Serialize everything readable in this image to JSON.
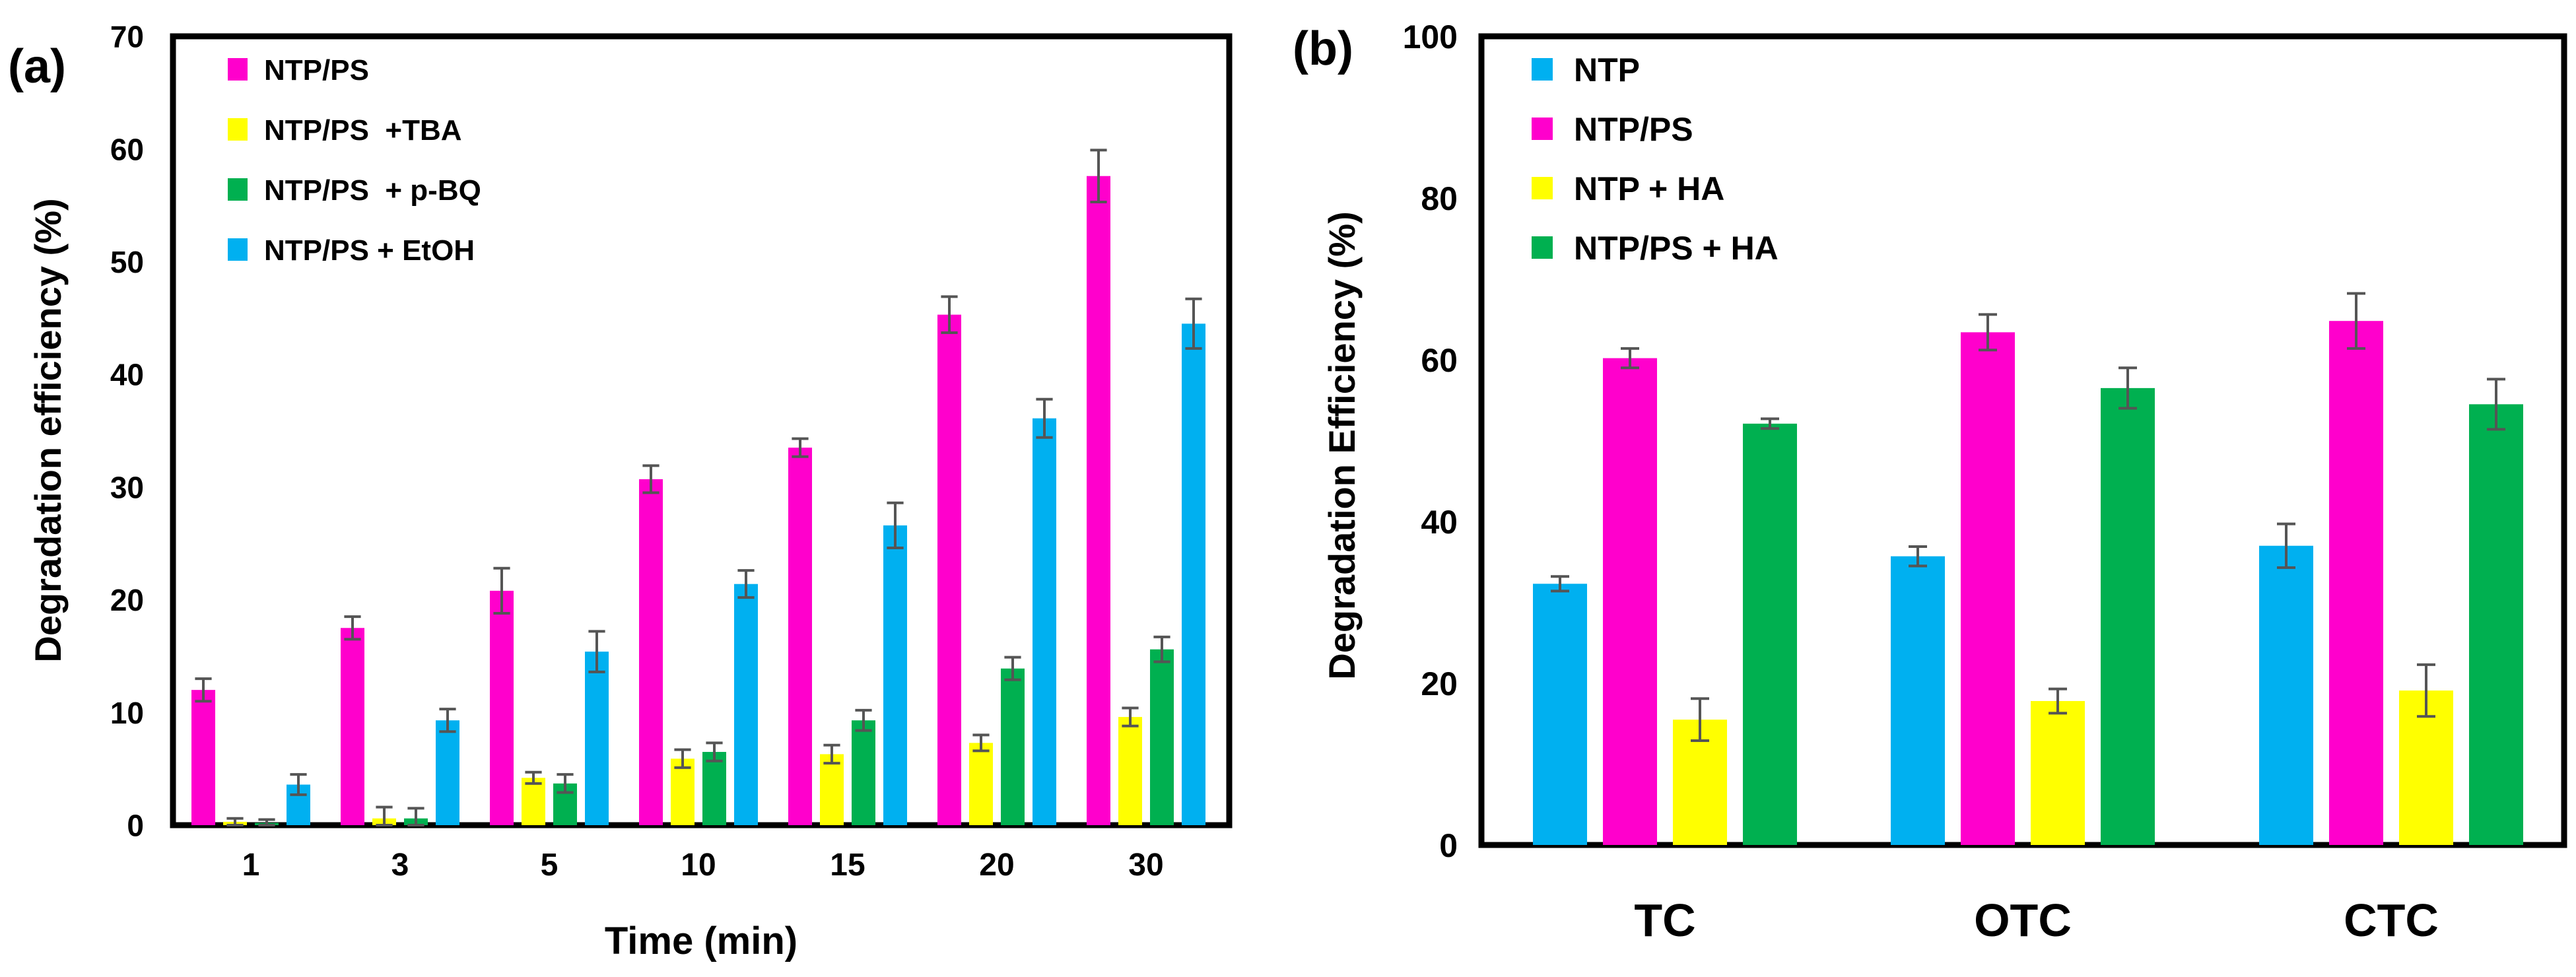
{
  "chart_data": [
    {
      "panel_label": "(a)",
      "type": "bar",
      "title": "",
      "xlabel": "Time (min)",
      "ylabel": "Degradation efficiency (%)",
      "ylim": [
        0,
        70
      ],
      "yticks": [
        "0",
        "10",
        "20",
        "30",
        "40",
        "50",
        "60",
        "70"
      ],
      "grid": false,
      "legend_position": "top-left",
      "categories": [
        "1",
        "3",
        "5",
        "10",
        "15",
        "20",
        "30"
      ],
      "series": [
        {
          "name": "NTP/PS",
          "color": "#ff00cc",
          "values": [
            12.0,
            17.5,
            20.8,
            30.7,
            33.5,
            45.3,
            57.6
          ],
          "errors": [
            1.0,
            1.0,
            2.0,
            1.2,
            0.8,
            1.6,
            2.3
          ]
        },
        {
          "name": "NTP/PS  +TBA",
          "color": "#ffff00",
          "values": [
            0.3,
            0.6,
            4.2,
            5.9,
            6.3,
            7.3,
            9.6
          ],
          "errors": [
            0.3,
            1.0,
            0.5,
            0.8,
            0.8,
            0.7,
            0.8
          ]
        },
        {
          "name": "NTP/PS  + p-BQ",
          "color": "#00b050",
          "values": [
            0.2,
            0.6,
            3.7,
            6.5,
            9.3,
            13.9,
            15.6
          ],
          "errors": [
            0.3,
            0.9,
            0.8,
            0.8,
            0.9,
            1.0,
            1.1
          ]
        },
        {
          "name": "NTP/PS + EtOH",
          "color": "#00b0f0",
          "values": [
            3.6,
            9.3,
            15.4,
            21.4,
            26.6,
            36.1,
            44.5
          ],
          "errors": [
            0.9,
            1.0,
            1.8,
            1.2,
            2.0,
            1.7,
            2.2
          ]
        }
      ]
    },
    {
      "panel_label": "(b)",
      "type": "bar",
      "title": "",
      "xlabel": "",
      "ylabel": "Degradation Efficiency (%)",
      "ylim": [
        0,
        100
      ],
      "yticks": [
        "0",
        "20",
        "40",
        "60",
        "80",
        "100"
      ],
      "grid": false,
      "legend_position": "top-left",
      "categories": [
        "TC",
        "OTC",
        "CTC"
      ],
      "series": [
        {
          "name": "NTP",
          "color": "#00b0f0",
          "values": [
            32.3,
            35.7,
            37.0
          ],
          "errors": [
            0.9,
            1.2,
            2.7
          ]
        },
        {
          "name": "NTP/PS",
          "color": "#ff00cc",
          "values": [
            60.2,
            63.4,
            64.8
          ],
          "errors": [
            1.2,
            2.2,
            3.4
          ]
        },
        {
          "name": "NTP + HA",
          "color": "#ffff00",
          "values": [
            15.5,
            17.8,
            19.1
          ],
          "errors": [
            2.6,
            1.5,
            3.2
          ]
        },
        {
          "name": "NTP/PS + HA",
          "color": "#00b050",
          "values": [
            52.1,
            56.5,
            54.5
          ],
          "errors": [
            0.6,
            2.5,
            3.1
          ]
        }
      ]
    }
  ]
}
